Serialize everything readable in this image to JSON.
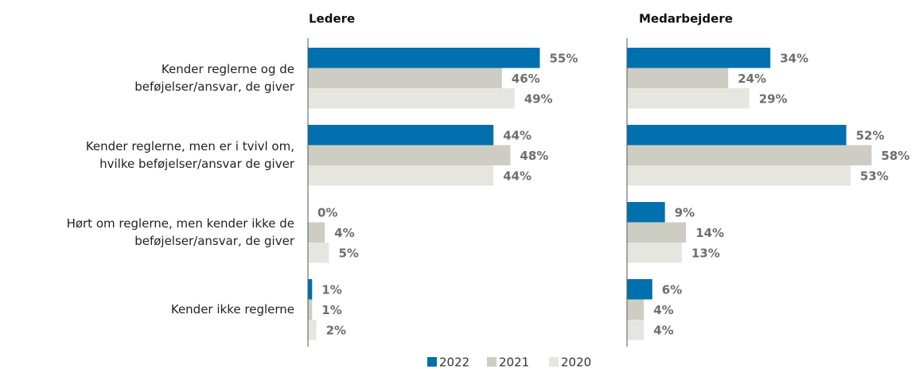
{
  "chart_data": [
    {
      "type": "bar",
      "orientation": "horizontal",
      "title": "Ledere",
      "categories": [
        [
          "Kender reglerne og de",
          "beføjelser/ansvar, de giver"
        ],
        [
          "Kender reglerne, men er i tvivl om,",
          "hvilke beføjelser/ansvar de giver"
        ],
        [
          "Hørt om reglerne, men kender ikke de",
          "beføjelser/ansvar, de giver"
        ],
        [
          "Kender ikke reglerne"
        ]
      ],
      "series": [
        {
          "name": "2022",
          "color": "#0070ae",
          "values": [
            55,
            44,
            0,
            1
          ],
          "value_labels": [
            "55%",
            "44%",
            "0%",
            "1%"
          ]
        },
        {
          "name": "2021",
          "color": "#cdcdc3",
          "values": [
            46,
            48,
            4,
            1
          ],
          "value_labels": [
            "46%",
            "48%",
            "4%",
            "1%"
          ]
        },
        {
          "name": "2020",
          "color": "#e6e6e1",
          "values": [
            49,
            44,
            5,
            2
          ],
          "value_labels": [
            "49%",
            "44%",
            "5%",
            "2%"
          ]
        }
      ]
    },
    {
      "type": "bar",
      "orientation": "horizontal",
      "title": "Medarbejdere",
      "series": [
        {
          "color": "#0070ae",
          "values": [
            34,
            52,
            9,
            6
          ],
          "value_labels": [
            "34%",
            "52%",
            "9%",
            "6%"
          ]
        },
        {
          "color": "#cdcdc3",
          "values": [
            24,
            58,
            14,
            4
          ],
          "value_labels": [
            "24%",
            "58%",
            "14%",
            "4%"
          ]
        },
        {
          "color": "#e6e6e1",
          "values": [
            29,
            53,
            13,
            4
          ],
          "value_labels": [
            "29%",
            "53%",
            "13%",
            "4%"
          ]
        }
      ]
    }
  ]
}
